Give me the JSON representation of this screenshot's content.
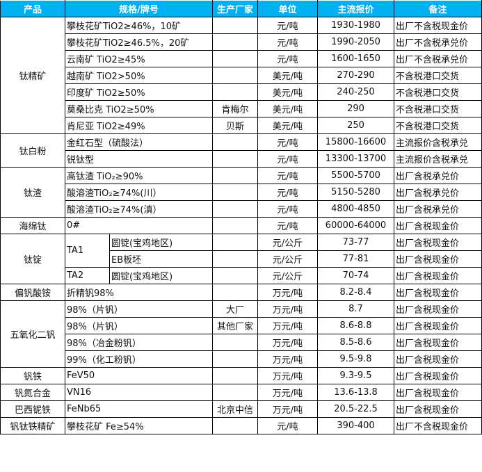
{
  "header": {
    "product": "产品",
    "spec": "规格/牌号",
    "maker": "生产厂家",
    "unit": "单位",
    "price": "主流报价",
    "note": "备注"
  },
  "colors": {
    "header_bg": "#00b0f0",
    "header_text": "#ffffff"
  },
  "groups": [
    {
      "product": "钛精矿",
      "items": [
        {
          "spec": "攀枝花矿TiO2≥46%，10矿",
          "maker": "",
          "unit": "元/吨",
          "price": "1930-1980",
          "note": "出厂不含税现金价"
        },
        {
          "spec": "攀枝花矿TiO2≥46.5%，20矿",
          "maker": "",
          "unit": "元/吨",
          "price": "1990-2050",
          "note": "出厂不含税承兑价"
        },
        {
          "spec": "云南矿 TiO2≥45%",
          "maker": "",
          "unit": "元/吨",
          "price": "1600-1650",
          "note": "出厂不含税承兑价"
        },
        {
          "spec": "越南矿 TiO2>50%",
          "maker": "",
          "unit": "美元/吨",
          "price": "270-290",
          "note": "不含税港口交货"
        },
        {
          "spec": "印度矿 TiO2≥50%",
          "maker": "",
          "unit": "美元/吨",
          "price": "240-250",
          "note": "不含税港口交货"
        },
        {
          "spec": "莫桑比克 TiO2≥50%",
          "maker": "肯梅尔",
          "unit": "美元/吨",
          "price": "290",
          "note": "不含税港口交货"
        },
        {
          "spec": "肯尼亚 TiO2≥49%",
          "maker": "贝斯",
          "unit": "美元/吨",
          "price": "250",
          "note": "不含税港口交货"
        }
      ]
    },
    {
      "product": "钛白粉",
      "items": [
        {
          "spec": "金红石型（硫酸法）",
          "maker": "",
          "unit": "元/吨",
          "price": "15800-16600",
          "note": "主流报价含税承兑"
        },
        {
          "spec": "锐钛型",
          "maker": "",
          "unit": "元/吨",
          "price": "13300-13700",
          "note": "主流报价含税承兑"
        }
      ]
    },
    {
      "product": "钛渣",
      "items": [
        {
          "spec": "高钛渣 TiO₂≥90%",
          "maker": "",
          "unit": "元/吨",
          "price": "5500-5700",
          "note": "出厂含税承兑价"
        },
        {
          "spec": "酸溶渣TiO₂≥74%(川）",
          "maker": "",
          "unit": "元/吨",
          "price": "5150-5280",
          "note": "出厂含税承兑价"
        },
        {
          "spec": "酸溶渣TiO₂≥74%(滇）",
          "maker": "",
          "unit": "元/吨",
          "price": "4800-4850",
          "note": "出厂含税承兑价"
        }
      ]
    },
    {
      "product": "海绵钛",
      "items": [
        {
          "spec": "0#",
          "maker": "",
          "unit": "元/吨",
          "price": "60000-64000",
          "note": "出厂含税现金价"
        }
      ]
    },
    {
      "product": "钛锭",
      "items": [
        {
          "grade": "TA1",
          "spec": "圆锭(宝鸡地区)",
          "maker": "",
          "unit": "元/公斤",
          "price": "73-77",
          "note": "出厂含税现金价"
        },
        {
          "grade": "TA1",
          "spec": "EB板坯",
          "maker": "",
          "unit": "元/公斤",
          "price": "77-81",
          "note": "出厂含税现金价"
        },
        {
          "grade": "TA2",
          "spec": "圆锭(宝鸡地区)",
          "maker": "",
          "unit": "元/公斤",
          "price": "70-74",
          "note": "出厂含税现金价"
        }
      ]
    },
    {
      "product": "偏钒酸铵",
      "items": [
        {
          "spec": "折精钒98%",
          "maker": "",
          "unit": "万元/吨",
          "price": "8.2-8.4",
          "note": "出厂含税现金价"
        }
      ]
    },
    {
      "product": "五氧化二钒",
      "items": [
        {
          "spec": "98%（片钒）",
          "maker": "大厂",
          "unit": "万元/吨",
          "price": "8.7",
          "note": "出厂含税现金价"
        },
        {
          "spec": "98%（片钒）",
          "maker": "其他厂家",
          "unit": "万元/吨",
          "price": "8.6-8.8",
          "note": "出厂含税现金价"
        },
        {
          "spec": "98%（冶金粉钒）",
          "maker": "",
          "unit": "万元/吨",
          "price": "8.5-8.6",
          "note": "出厂含税现金价"
        },
        {
          "spec": "99%（化工粉钒）",
          "maker": "",
          "unit": "万元/吨",
          "price": "9.5-9.8",
          "note": "出厂含税现金价"
        }
      ]
    },
    {
      "product": "钒铁",
      "items": [
        {
          "spec": "FeV50",
          "maker": "",
          "unit": "万元/吨",
          "price": "9.3-9.5",
          "note": "出厂含税现金价"
        }
      ]
    },
    {
      "product": "钒氮合金",
      "items": [
        {
          "spec": "VN16",
          "maker": "",
          "unit": "万元/吨",
          "price": "13.6-13.8",
          "note": "出厂含税现金价"
        }
      ]
    },
    {
      "product": "巴西铌铁",
      "items": [
        {
          "spec": "FeNb65",
          "maker": "北京中信",
          "unit": "万元/吨",
          "price": "20.5-22.5",
          "note": "出厂含税现金价"
        }
      ]
    },
    {
      "product": "钒钛铁精矿",
      "items": [
        {
          "spec": "攀枝花矿 Fe≥54%",
          "maker": "",
          "unit": "元/吨",
          "price": "390-400",
          "note": "出厂不含税现金价"
        }
      ]
    }
  ]
}
